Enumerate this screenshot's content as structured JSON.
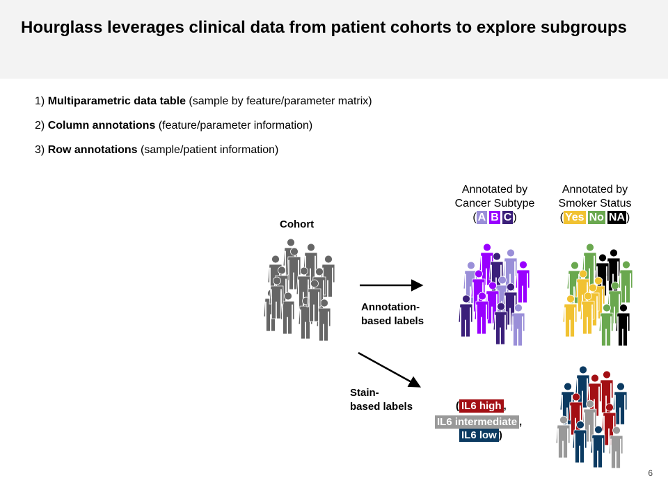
{
  "slide": {
    "title": "Hourglass leverages clinical data from patient cohorts to explore subgroups",
    "page_number": "6"
  },
  "points": [
    {
      "num": "1)",
      "bold": "Multiparametric data table",
      "rest": "(sample by feature/parameter matrix)"
    },
    {
      "num": "2)",
      "bold": "Column annotations",
      "rest": "(feature/parameter information)"
    },
    {
      "num": "3)",
      "bold": "Row annotations",
      "rest": "(sample/patient information)"
    }
  ],
  "diagram": {
    "cohort_label": "Cohort",
    "annotation_label_line1": "Annotation-",
    "annotation_label_line2": "based labels",
    "stain_label_line1": "Stain-",
    "stain_label_line2": "based labels",
    "cancer": {
      "line1": "Annotated by",
      "line2": "Cancer Subtype",
      "open": "(",
      "close": ")",
      "chips": [
        "A",
        "B",
        "C"
      ],
      "colors": [
        "#9a8fd8",
        "#9900ff",
        "#3b1f7a"
      ]
    },
    "smoker": {
      "line1": "Annotated by",
      "line2": "Smoker Status",
      "open": "(",
      "close": ")",
      "chips": [
        "Yes",
        "No",
        "NA"
      ],
      "colors": [
        "#f1c232",
        "#6aa84f",
        "#000000"
      ]
    },
    "il6": {
      "open": "(",
      "high": "IL6 high",
      "comma1": ",",
      "intermediate": "IL6 intermediate",
      "comma2": ",",
      "low": "IL6 low",
      "close": ")",
      "colors": [
        "#a30f14",
        "#999999",
        "#0b3a61"
      ]
    },
    "cohort_color": "#666666",
    "arrow_color": "#000000"
  }
}
